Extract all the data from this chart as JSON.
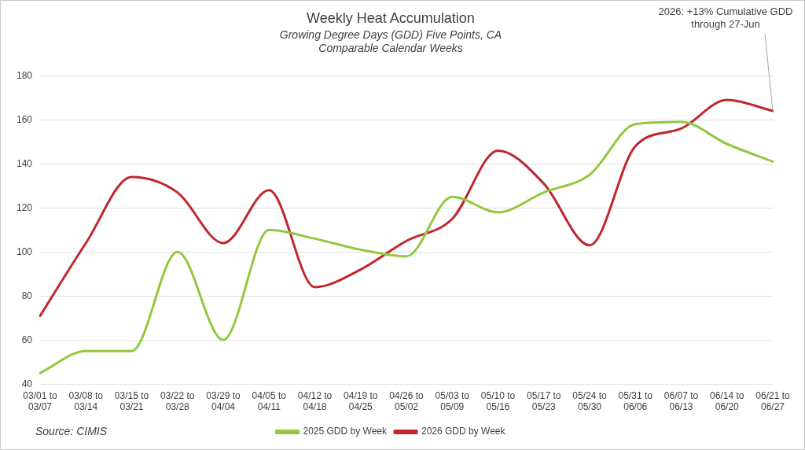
{
  "chart_data": {
    "type": "line",
    "title": "Weekly Heat Accumulation",
    "subtitle": "Growing Degree Days (GDD) Five Points, CA\nComparable Calendar Weeks",
    "categories": [
      "03/01 to 03/07",
      "03/08 to 03/14",
      "03/15 to 03/21",
      "03/22 to 03/28",
      "03/29 to 04/04",
      "04/05 to 04/11",
      "04/12 to 04/18",
      "04/19 to 04/25",
      "04/26 to 05/02",
      "05/03 to 05/09",
      "05/10 to 05/16",
      "05/17 to 05/23",
      "05/24 to 05/30",
      "05/31 to 06/06",
      "06/07 to 06/13",
      "06/14 to 06/20",
      "06/21 to 06/27"
    ],
    "series": [
      {
        "name": "2025 GDD by Week",
        "color": "#92c83e",
        "values": [
          45,
          55,
          55,
          100,
          60,
          110,
          106,
          101,
          98,
          125,
          118,
          127,
          135,
          158,
          159,
          149,
          141
        ]
      },
      {
        "name": "2026 GDD by Week",
        "color": "#c0272d",
        "values": [
          71,
          104,
          134,
          127,
          104,
          128,
          84,
          92,
          105,
          115,
          146,
          131,
          103,
          148,
          156,
          169,
          164
        ]
      }
    ],
    "ylim": [
      40,
      180
    ],
    "yticks": [
      40,
      60,
      80,
      100,
      120,
      140,
      160,
      180
    ],
    "grid": "y",
    "legend": "bottom",
    "marker": "none",
    "line_style": "solid",
    "annotations": [
      {
        "text": "2026: +13% Cumulative GDD\nthrough 27-Jun",
        "x": "06/21 to 06/27",
        "y": 164
      },
      "Source: CIMIS"
    ]
  }
}
